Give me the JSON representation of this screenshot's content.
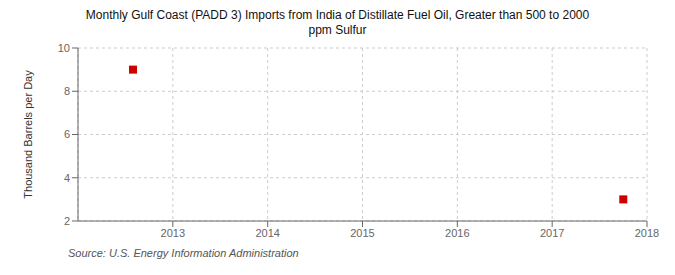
{
  "chart_data": {
    "type": "scatter",
    "title": "Monthly Gulf Coast (PADD 3) Imports from India of Distillate Fuel Oil, Greater than 500 to 2000\nppm Sulfur",
    "ylabel": "Thousand Barrels per Day",
    "annotation": "Source: U.S. Energy Information Administration",
    "x": [
      2012.58,
      2017.75
    ],
    "values": [
      9.0,
      3.0
    ],
    "color": "#cc0000",
    "marker": "square",
    "xlim": [
      2012,
      2018
    ],
    "ylim": [
      2,
      10
    ],
    "xticks": [
      2013,
      2014,
      2015,
      2016,
      2017,
      2018
    ],
    "yticks": [
      2,
      4,
      6,
      8,
      10
    ],
    "grid": true
  }
}
